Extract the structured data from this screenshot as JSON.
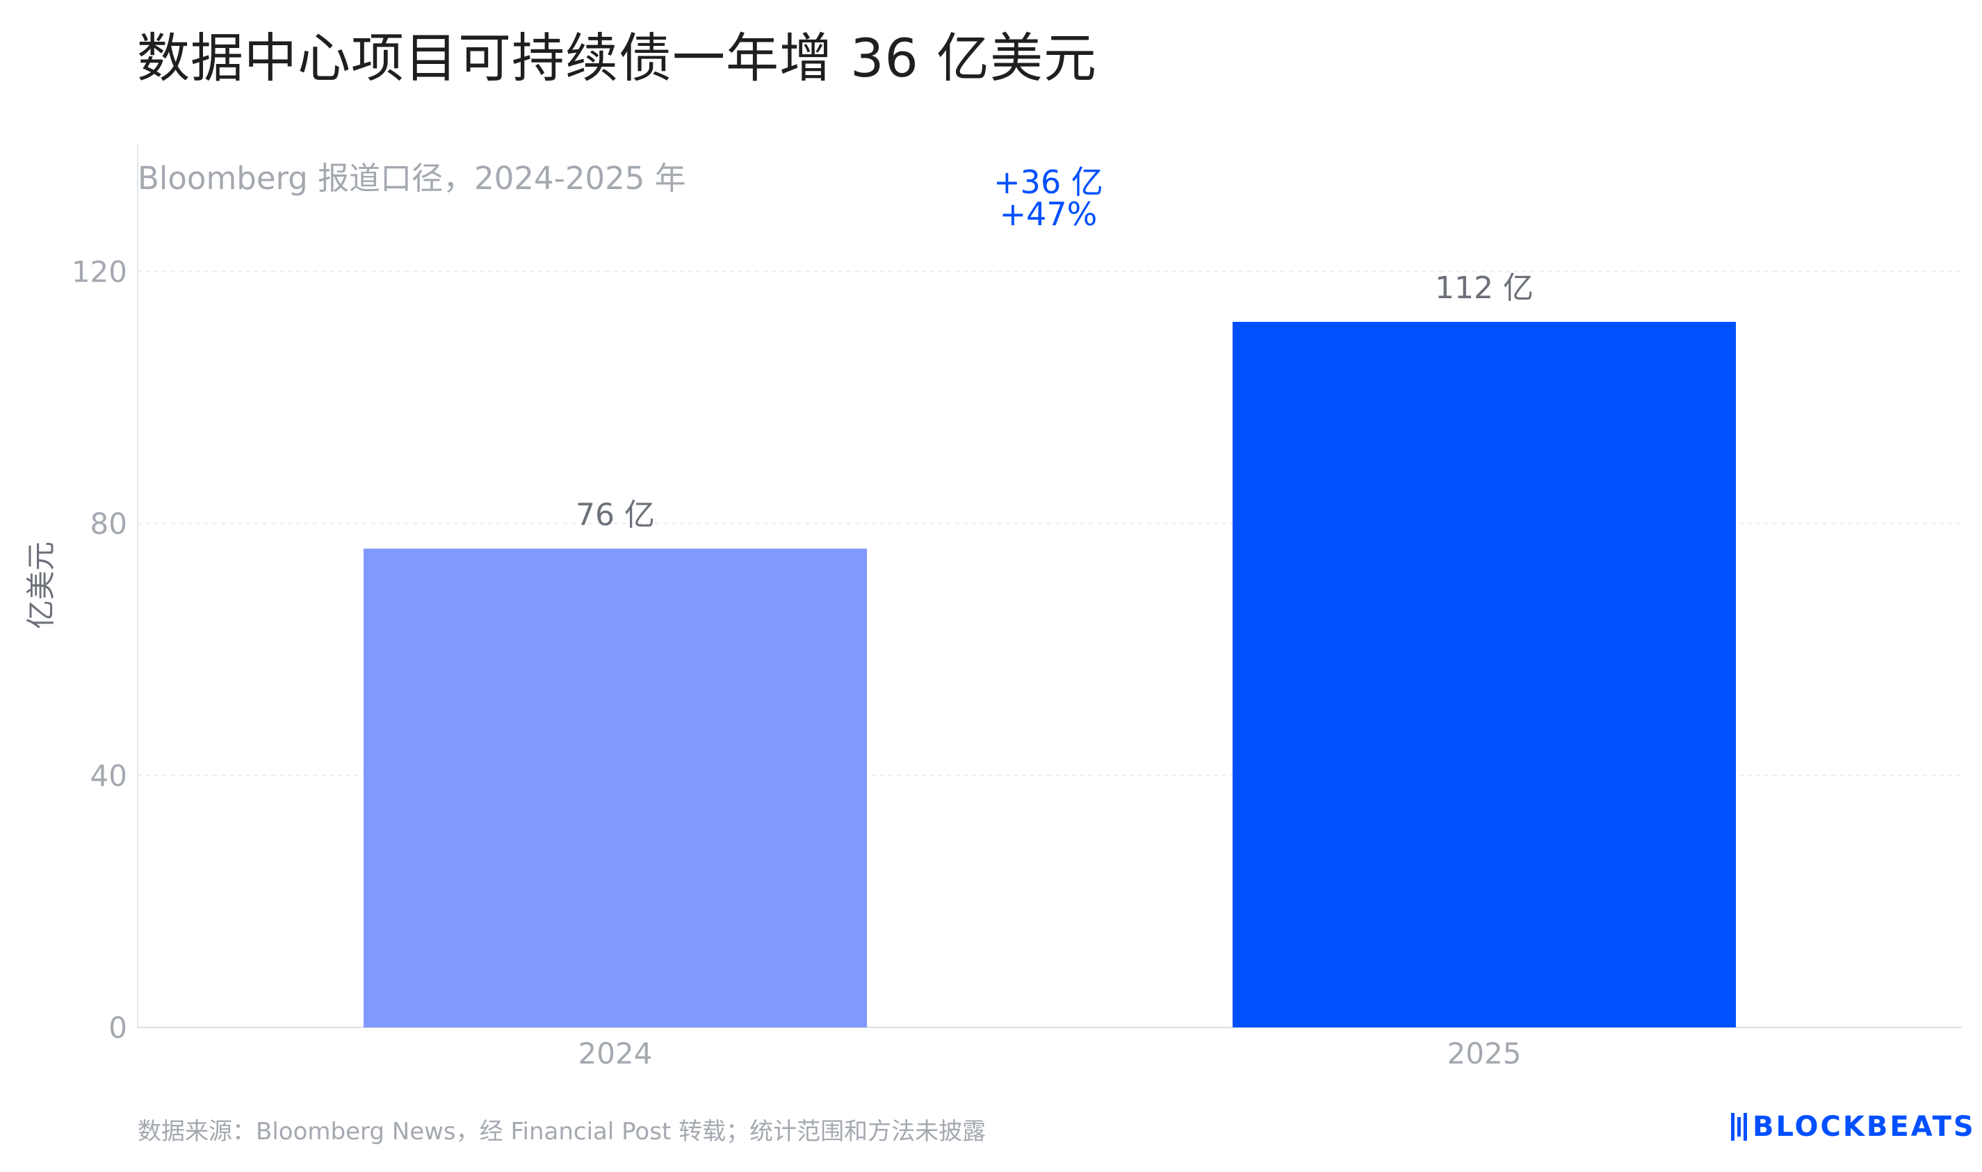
{
  "title": "数据中心项目可持续债一年增 36 亿美元",
  "subtitle": "Bloomberg 报道口径，2024-2025 年",
  "source": "数据来源：Bloomberg News，经 Financial Post 转载；统计范围和方法未披露",
  "logo": "BLOCKBEATS",
  "chart_data": {
    "type": "bar",
    "categories": [
      "2024",
      "2025"
    ],
    "values": [
      76,
      112
    ],
    "value_labels": [
      "76 亿",
      "112 亿"
    ],
    "bar_colors": [
      "#8099ff",
      "#0050ff"
    ],
    "ylabel": "亿美元",
    "xlabel": "",
    "ylim": [
      0,
      120
    ],
    "yticks": [
      0,
      40,
      80,
      120
    ],
    "grid": true,
    "annotation": [
      "+36 亿",
      "+47%"
    ],
    "annotation_color": "#0050ff"
  }
}
